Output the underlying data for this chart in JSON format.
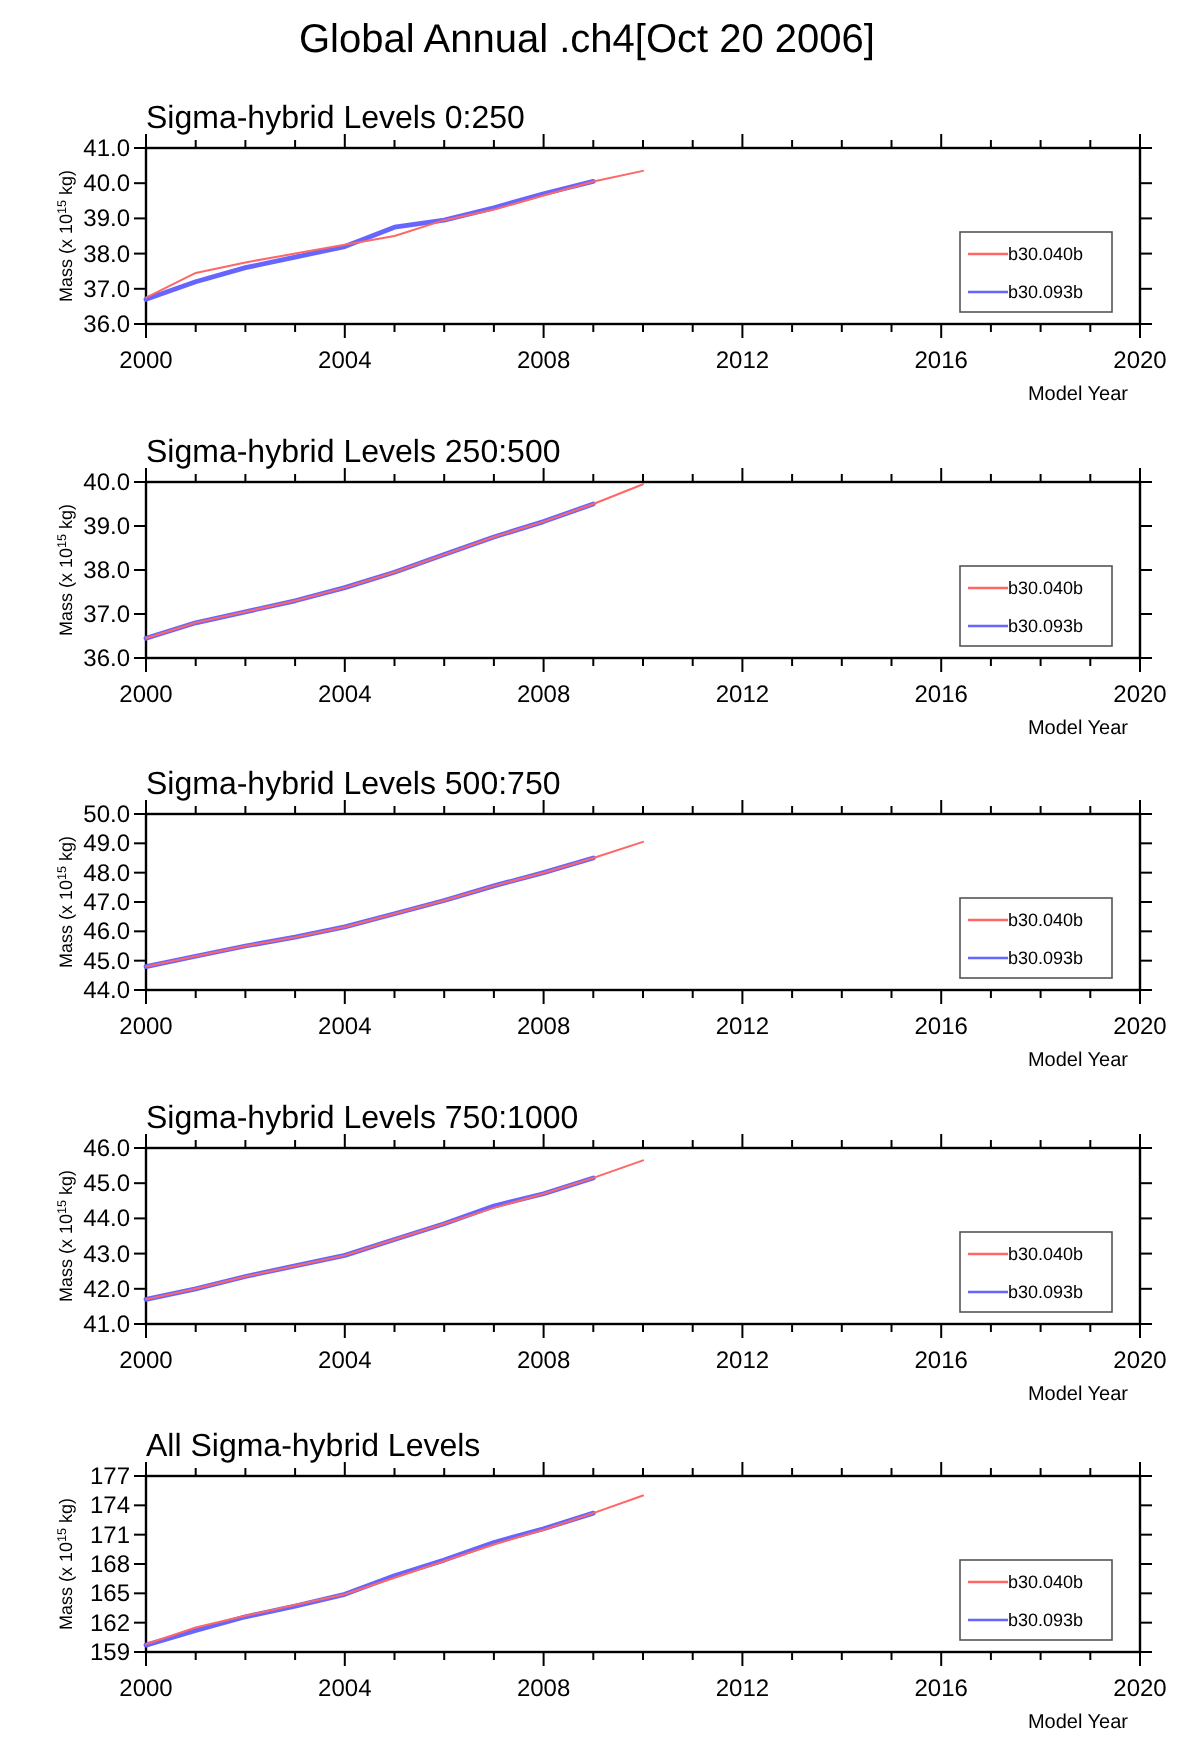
{
  "chart_data": [
    {
      "type": "line",
      "title": "Global Annual .ch4[Oct 20 2006]",
      "subtitle": "Sigma-hybrid Levels 0:250",
      "xlabel": "Model Year",
      "ylabel": "Mass (x 10$^{15}$ kg)",
      "legend": "bottom right",
      "xlim": [
        2000,
        2020
      ],
      "ylim": [
        36,
        41
      ],
      "xticks": [
        2000,
        {
          "value": 2001,
          "label": null
        },
        {
          "value": 2002,
          "label": null
        },
        {
          "value": 2003,
          "label": null
        },
        2004,
        {
          "value": 2005,
          "label": null
        },
        {
          "value": 2006,
          "label": null
        },
        {
          "value": 2007,
          "label": null
        },
        2008,
        {
          "value": 2009,
          "label": null
        },
        {
          "value": 2010,
          "label": null
        },
        {
          "value": 2011,
          "label": null
        },
        2012,
        {
          "value": 2013,
          "label": null
        },
        {
          "value": 2014,
          "label": null
        },
        {
          "value": 2015,
          "label": null
        },
        2016,
        {
          "value": 2017,
          "label": null
        },
        {
          "value": 2018,
          "label": null
        },
        {
          "value": 2019,
          "label": null
        },
        2020
      ],
      "yticks": [
        {
          "value": 36,
          "label": "36.0"
        },
        {
          "value": 37,
          "label": "37.0"
        },
        {
          "value": 38,
          "label": "38.0"
        },
        {
          "value": 39,
          "label": "39.0"
        },
        {
          "value": 40,
          "label": "40.0"
        },
        {
          "value": 41,
          "label": "41.0"
        }
      ],
      "series": [
        {
          "name": "b30.040b",
          "color": "#ff6666",
          "x": [
            2000,
            2001,
            2002,
            2003,
            2004,
            2005,
            2006,
            2007,
            2008,
            2009,
            2010
          ],
          "values": [
            36.75,
            37.45,
            37.75,
            38.0,
            38.25,
            38.5,
            38.95,
            39.25,
            39.65,
            40.05,
            40.35
          ]
        },
        {
          "name": "b30.093b",
          "color": "#6666ff",
          "x": [
            2000,
            2001,
            2002,
            2003,
            2004,
            2005,
            2006,
            2007,
            2008,
            2009
          ],
          "values": [
            36.7,
            37.2,
            37.6,
            37.9,
            38.2,
            38.75,
            38.95,
            39.3,
            39.7,
            40.05
          ]
        }
      ]
    },
    {
      "type": "line",
      "subtitle": "Sigma-hybrid Levels 250:500",
      "xlabel": "Model Year",
      "ylabel": "Mass (x 10$^{15}$ kg)",
      "legend": "bottom right",
      "xlim": [
        2000,
        2020
      ],
      "ylim": [
        36,
        40
      ],
      "xticks": [
        2000,
        {
          "value": 2001,
          "label": null
        },
        {
          "value": 2002,
          "label": null
        },
        {
          "value": 2003,
          "label": null
        },
        2004,
        {
          "value": 2005,
          "label": null
        },
        {
          "value": 2006,
          "label": null
        },
        {
          "value": 2007,
          "label": null
        },
        2008,
        {
          "value": 2009,
          "label": null
        },
        {
          "value": 2010,
          "label": null
        },
        {
          "value": 2011,
          "label": null
        },
        2012,
        {
          "value": 2013,
          "label": null
        },
        {
          "value": 2014,
          "label": null
        },
        {
          "value": 2015,
          "label": null
        },
        2016,
        {
          "value": 2017,
          "label": null
        },
        {
          "value": 2018,
          "label": null
        },
        {
          "value": 2019,
          "label": null
        },
        2020
      ],
      "yticks": [
        {
          "value": 36,
          "label": "36.0"
        },
        {
          "value": 37,
          "label": "37.0"
        },
        {
          "value": 38,
          "label": "38.0"
        },
        {
          "value": 39,
          "label": "39.0"
        },
        {
          "value": 40,
          "label": "40.0"
        }
      ],
      "series": [
        {
          "name": "b30.040b",
          "color": "#ff6666",
          "x": [
            2000,
            2001,
            2002,
            2003,
            2004,
            2005,
            2006,
            2007,
            2008,
            2009,
            2010
          ],
          "values": [
            36.45,
            36.8,
            37.05,
            37.3,
            37.6,
            37.95,
            38.35,
            38.75,
            39.1,
            39.5,
            39.95
          ]
        },
        {
          "name": "b30.093b",
          "color": "#6666ff",
          "x": [
            2000,
            2001,
            2002,
            2003,
            2004,
            2005,
            2006,
            2007,
            2008,
            2009
          ],
          "values": [
            36.45,
            36.8,
            37.05,
            37.3,
            37.6,
            37.95,
            38.35,
            38.75,
            39.1,
            39.5
          ]
        }
      ]
    },
    {
      "type": "line",
      "subtitle": "Sigma-hybrid Levels 500:750",
      "xlabel": "Model Year",
      "ylabel": "Mass (x 10$^{15}$ kg)",
      "legend": "bottom right",
      "xlim": [
        2000,
        2020
      ],
      "ylim": [
        44,
        50
      ],
      "xticks": [
        2000,
        {
          "value": 2001,
          "label": null
        },
        {
          "value": 2002,
          "label": null
        },
        {
          "value": 2003,
          "label": null
        },
        2004,
        {
          "value": 2005,
          "label": null
        },
        {
          "value": 2006,
          "label": null
        },
        {
          "value": 2007,
          "label": null
        },
        2008,
        {
          "value": 2009,
          "label": null
        },
        {
          "value": 2010,
          "label": null
        },
        {
          "value": 2011,
          "label": null
        },
        2012,
        {
          "value": 2013,
          "label": null
        },
        {
          "value": 2014,
          "label": null
        },
        {
          "value": 2015,
          "label": null
        },
        2016,
        {
          "value": 2017,
          "label": null
        },
        {
          "value": 2018,
          "label": null
        },
        {
          "value": 2019,
          "label": null
        },
        2020
      ],
      "yticks": [
        {
          "value": 44,
          "label": "44.0"
        },
        {
          "value": 45,
          "label": "45.0"
        },
        {
          "value": 46,
          "label": "46.0"
        },
        {
          "value": 47,
          "label": "47.0"
        },
        {
          "value": 48,
          "label": "48.0"
        },
        {
          "value": 49,
          "label": "49.0"
        },
        {
          "value": 50,
          "label": "50.0"
        }
      ],
      "series": [
        {
          "name": "b30.040b",
          "color": "#ff6666",
          "x": [
            2000,
            2001,
            2002,
            2003,
            2004,
            2005,
            2006,
            2007,
            2008,
            2009,
            2010
          ],
          "values": [
            44.8,
            45.15,
            45.5,
            45.8,
            46.15,
            46.6,
            47.05,
            47.55,
            48.0,
            48.5,
            49.05
          ]
        },
        {
          "name": "b30.093b",
          "color": "#6666ff",
          "x": [
            2000,
            2001,
            2002,
            2003,
            2004,
            2005,
            2006,
            2007,
            2008,
            2009
          ],
          "values": [
            44.8,
            45.15,
            45.5,
            45.8,
            46.15,
            46.6,
            47.05,
            47.55,
            48.0,
            48.5
          ]
        }
      ]
    },
    {
      "type": "line",
      "subtitle": "Sigma-hybrid Levels 750:1000",
      "xlabel": "Model Year",
      "ylabel": "Mass (x 10$^{15}$ kg)",
      "legend": "bottom right",
      "xlim": [
        2000,
        2020
      ],
      "ylim": [
        41,
        46
      ],
      "xticks": [
        2000,
        {
          "value": 2001,
          "label": null
        },
        {
          "value": 2002,
          "label": null
        },
        {
          "value": 2003,
          "label": null
        },
        2004,
        {
          "value": 2005,
          "label": null
        },
        {
          "value": 2006,
          "label": null
        },
        {
          "value": 2007,
          "label": null
        },
        2008,
        {
          "value": 2009,
          "label": null
        },
        {
          "value": 2010,
          "label": null
        },
        {
          "value": 2011,
          "label": null
        },
        2012,
        {
          "value": 2013,
          "label": null
        },
        {
          "value": 2014,
          "label": null
        },
        {
          "value": 2015,
          "label": null
        },
        2016,
        {
          "value": 2017,
          "label": null
        },
        {
          "value": 2018,
          "label": null
        },
        {
          "value": 2019,
          "label": null
        },
        2020
      ],
      "yticks": [
        {
          "value": 41,
          "label": "41.0"
        },
        {
          "value": 42,
          "label": "42.0"
        },
        {
          "value": 43,
          "label": "43.0"
        },
        {
          "value": 44,
          "label": "44.0"
        },
        {
          "value": 45,
          "label": "45.0"
        },
        {
          "value": 46,
          "label": "46.0"
        }
      ],
      "series": [
        {
          "name": "b30.040b",
          "color": "#ff6666",
          "x": [
            2000,
            2001,
            2002,
            2003,
            2004,
            2005,
            2006,
            2007,
            2008,
            2009,
            2010
          ],
          "values": [
            41.7,
            42.0,
            42.35,
            42.65,
            42.95,
            43.4,
            43.85,
            44.3,
            44.7,
            45.15,
            45.65
          ]
        },
        {
          "name": "b30.093b",
          "color": "#6666ff",
          "x": [
            2000,
            2001,
            2002,
            2003,
            2004,
            2005,
            2006,
            2007,
            2008,
            2009
          ],
          "values": [
            41.7,
            42.0,
            42.35,
            42.65,
            42.95,
            43.4,
            43.85,
            44.35,
            44.7,
            45.15
          ]
        }
      ]
    },
    {
      "type": "line",
      "subtitle": "All Sigma-hybrid Levels",
      "xlabel": "Model Year",
      "ylabel": "Mass (x 10$^{15}$ kg)",
      "legend": "bottom right",
      "xlim": [
        2000,
        2020
      ],
      "ylim": [
        159,
        177
      ],
      "xticks": [
        2000,
        {
          "value": 2001,
          "label": null
        },
        {
          "value": 2002,
          "label": null
        },
        {
          "value": 2003,
          "label": null
        },
        2004,
        {
          "value": 2005,
          "label": null
        },
        {
          "value": 2006,
          "label": null
        },
        {
          "value": 2007,
          "label": null
        },
        2008,
        {
          "value": 2009,
          "label": null
        },
        {
          "value": 2010,
          "label": null
        },
        {
          "value": 2011,
          "label": null
        },
        2012,
        {
          "value": 2013,
          "label": null
        },
        {
          "value": 2014,
          "label": null
        },
        {
          "value": 2015,
          "label": null
        },
        2016,
        {
          "value": 2017,
          "label": null
        },
        {
          "value": 2018,
          "label": null
        },
        {
          "value": 2019,
          "label": null
        },
        2020
      ],
      "yticks": [
        159,
        162,
        165,
        168,
        171,
        174,
        177
      ],
      "series": [
        {
          "name": "b30.040b",
          "color": "#ff6666",
          "x": [
            2000,
            2001,
            2002,
            2003,
            2004,
            2005,
            2006,
            2007,
            2008,
            2009,
            2010
          ],
          "values": [
            159.8,
            161.5,
            162.7,
            163.8,
            164.9,
            166.6,
            168.3,
            170.0,
            171.5,
            173.2,
            175.0
          ]
        },
        {
          "name": "b30.093b",
          "color": "#6666ff",
          "x": [
            2000,
            2001,
            2002,
            2003,
            2004,
            2005,
            2006,
            2007,
            2008,
            2009
          ],
          "values": [
            159.7,
            161.2,
            162.6,
            163.7,
            164.9,
            166.8,
            168.4,
            170.2,
            171.6,
            173.2
          ]
        }
      ]
    }
  ]
}
